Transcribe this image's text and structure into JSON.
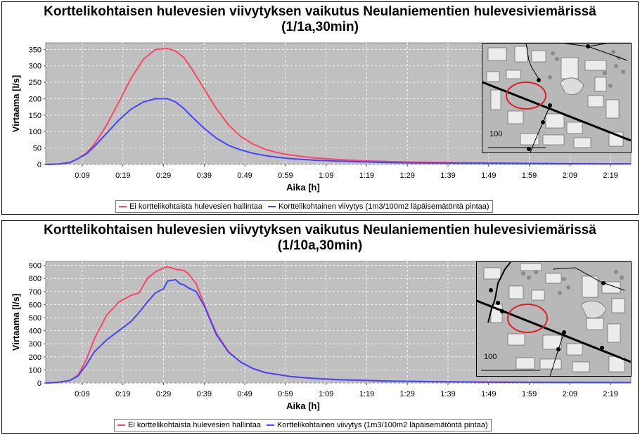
{
  "chart_data": [
    {
      "type": "line",
      "title": "Korttelikohtaisen hulevesien viivytyksen vaikutus Neulaniementien hulevesiviemärissä",
      "subtitle": "(1/1a,30min)",
      "xlabel": "Aika [h]",
      "ylabel": "Virtaama [l/s]",
      "xticks": [
        "0:09",
        "0:19",
        "0:29",
        "0:39",
        "0:49",
        "0:59",
        "1:09",
        "1:19",
        "1:29",
        "1:39",
        "1:49",
        "1:59",
        "2:09",
        "2:19"
      ],
      "yticks": [
        0,
        50,
        100,
        150,
        200,
        250,
        300,
        350
      ],
      "xlim": [
        0,
        2.4
      ],
      "ylim": [
        0,
        370
      ],
      "grid": true,
      "legend_position": "bottom",
      "series": [
        {
          "name": "Ei korttelikohtaista hulevesien hallintaa",
          "color": "#ff4466",
          "x": [
            0,
            0.05,
            0.1,
            0.133,
            0.167,
            0.2,
            0.25,
            0.3,
            0.35,
            0.4,
            0.45,
            0.5,
            0.533,
            0.567,
            0.6,
            0.65,
            0.7,
            0.75,
            0.8,
            0.85,
            0.9,
            0.95,
            1.0,
            1.1,
            1.2,
            1.3,
            1.4,
            1.5,
            1.7,
            1.9,
            2.1,
            2.4
          ],
          "y": [
            0,
            1,
            6,
            18,
            35,
            62,
            120,
            190,
            262,
            320,
            350,
            353,
            345,
            325,
            290,
            230,
            170,
            120,
            85,
            62,
            46,
            36,
            29,
            20,
            15,
            11,
            9,
            7,
            5,
            4,
            3,
            2
          ]
        },
        {
          "name": "Korttelikohtainen viivytys (1m3/100m2 läpäisemätöntä pintaa)",
          "color": "#4444ff",
          "x": [
            0,
            0.05,
            0.1,
            0.133,
            0.167,
            0.2,
            0.25,
            0.3,
            0.35,
            0.4,
            0.45,
            0.5,
            0.533,
            0.567,
            0.6,
            0.65,
            0.7,
            0.75,
            0.8,
            0.85,
            0.9,
            0.95,
            1.0,
            1.1,
            1.2,
            1.3,
            1.4,
            1.5,
            1.7,
            1.9,
            2.1,
            2.4
          ],
          "y": [
            0,
            1,
            6,
            18,
            32,
            55,
            95,
            135,
            168,
            190,
            200,
            200,
            190,
            170,
            145,
            110,
            80,
            58,
            44,
            34,
            27,
            22,
            18,
            13,
            10,
            8,
            6,
            5,
            4,
            3,
            2,
            2
          ]
        }
      ]
    },
    {
      "type": "line",
      "title": "Korttelikohtaisen hulevesien viivytyksen vaikutus Neulaniementien hulevesiviemärissä",
      "subtitle": "(1/10a,30min)",
      "xlabel": "Aika [h]",
      "ylabel": "Virtaama [l/s]",
      "xticks": [
        "0:09",
        "0:19",
        "0:29",
        "0:39",
        "0:49",
        "0:59",
        "1:09",
        "1:19",
        "1:29",
        "1:39",
        "1:49",
        "1:59",
        "2:09",
        "2:19"
      ],
      "yticks": [
        0,
        100,
        200,
        300,
        400,
        500,
        600,
        700,
        800,
        900
      ],
      "xlim": [
        0,
        2.4
      ],
      "ylim": [
        0,
        930
      ],
      "grid": true,
      "legend_position": "bottom",
      "series": [
        {
          "name": "Ei korttelikohtaista hulevesien hallintaa",
          "color": "#ff4466",
          "x": [
            0,
            0.05,
            0.1,
            0.133,
            0.167,
            0.2,
            0.25,
            0.3,
            0.35,
            0.383,
            0.417,
            0.45,
            0.483,
            0.5,
            0.533,
            0.567,
            0.583,
            0.617,
            0.65,
            0.7,
            0.75,
            0.8,
            0.85,
            0.9,
            1.0,
            1.1,
            1.2,
            1.4,
            1.6,
            1.8,
            2.0,
            2.4
          ],
          "y": [
            0,
            5,
            20,
            60,
            180,
            340,
            520,
            620,
            670,
            690,
            800,
            850,
            880,
            890,
            870,
            860,
            840,
            760,
            600,
            380,
            240,
            160,
            110,
            80,
            50,
            35,
            25,
            15,
            10,
            7,
            5,
            3
          ]
        },
        {
          "name": "Korttelikohtainen viivytys (1m3/100m2 läpäisemätöntä pintaa)",
          "color": "#4444ff",
          "x": [
            0,
            0.05,
            0.1,
            0.133,
            0.167,
            0.2,
            0.25,
            0.3,
            0.35,
            0.383,
            0.417,
            0.45,
            0.483,
            0.5,
            0.533,
            0.55,
            0.567,
            0.583,
            0.617,
            0.65,
            0.7,
            0.75,
            0.8,
            0.85,
            0.9,
            1.0,
            1.1,
            1.2,
            1.4,
            1.6,
            1.8,
            2.4
          ],
          "y": [
            0,
            5,
            20,
            55,
            140,
            240,
            330,
            400,
            470,
            540,
            620,
            690,
            720,
            780,
            790,
            760,
            750,
            730,
            700,
            590,
            370,
            235,
            160,
            110,
            80,
            50,
            35,
            25,
            15,
            10,
            7,
            3
          ]
        }
      ]
    }
  ],
  "maps": [
    {
      "scale_label": "100"
    },
    {
      "scale_label": "100"
    }
  ]
}
